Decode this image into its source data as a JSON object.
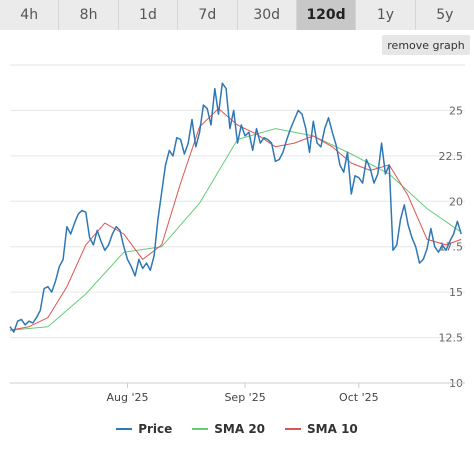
{
  "tabs": [
    {
      "label": "4h",
      "active": false
    },
    {
      "label": "8h",
      "active": false
    },
    {
      "label": "1d",
      "active": false
    },
    {
      "label": "7d",
      "active": false
    },
    {
      "label": "30d",
      "active": false
    },
    {
      "label": "120d",
      "active": true
    },
    {
      "label": "1y",
      "active": false
    },
    {
      "label": "5y",
      "active": false
    }
  ],
  "remove_graph_label": "remove graph",
  "legend": [
    {
      "label": "Price",
      "color": "#2f78b4"
    },
    {
      "label": "SMA 20",
      "color": "#66cc77"
    },
    {
      "label": "SMA 10",
      "color": "#e05252"
    }
  ],
  "chart_data": {
    "type": "line",
    "ylim": [
      10,
      27.5
    ],
    "yticks": [
      10,
      12.5,
      15,
      17.5,
      20,
      22.5,
      25
    ],
    "ytick_labels": [
      "10",
      "12.5",
      "15",
      "17.5",
      "20",
      "22.5",
      "25"
    ],
    "xlim": [
      0,
      120
    ],
    "xticks": [
      {
        "x": 31,
        "label": "Aug '25"
      },
      {
        "x": 62,
        "label": "Sep '25"
      },
      {
        "x": 92,
        "label": "Oct '25"
      }
    ],
    "grid": true,
    "legend_position": "bottom",
    "series": [
      {
        "name": "Price",
        "color": "#2f78b4",
        "x": [
          0,
          1,
          2,
          3,
          4,
          5,
          6,
          7,
          8,
          9,
          10,
          11,
          12,
          13,
          14,
          15,
          16,
          17,
          18,
          19,
          20,
          21,
          22,
          23,
          24,
          25,
          26,
          27,
          28,
          29,
          30,
          31,
          32,
          33,
          34,
          35,
          36,
          37,
          38,
          39,
          40,
          41,
          42,
          43,
          44,
          45,
          46,
          47,
          48,
          49,
          50,
          51,
          52,
          53,
          54,
          55,
          56,
          57,
          58,
          59,
          60,
          61,
          62,
          63,
          64,
          65,
          66,
          67,
          68,
          69,
          70,
          71,
          72,
          73,
          74,
          75,
          76,
          77,
          78,
          79,
          80,
          81,
          82,
          83,
          84,
          85,
          86,
          87,
          88,
          89,
          90,
          91,
          92,
          93,
          94,
          95,
          96,
          97,
          98,
          99,
          100,
          101,
          102,
          103,
          104,
          105,
          106,
          107,
          108,
          109,
          110,
          111,
          112,
          113,
          114,
          115,
          116,
          117,
          118,
          119
        ],
        "values": [
          13.1,
          12.8,
          13.4,
          13.5,
          13.2,
          13.4,
          13.3,
          13.6,
          14.0,
          15.2,
          15.3,
          15.0,
          15.6,
          16.4,
          16.8,
          18.6,
          18.2,
          18.8,
          19.3,
          19.5,
          19.4,
          18.0,
          17.6,
          18.4,
          17.8,
          17.3,
          17.6,
          18.2,
          18.6,
          18.4,
          17.5,
          16.8,
          16.4,
          15.9,
          16.8,
          16.3,
          16.6,
          16.2,
          17.0,
          19.0,
          20.5,
          22.0,
          22.8,
          22.5,
          23.5,
          23.4,
          22.6,
          23.2,
          24.5,
          23.0,
          23.8,
          25.3,
          25.1,
          24.2,
          26.2,
          24.8,
          26.5,
          26.2,
          24.0,
          25.0,
          23.2,
          24.2,
          23.6,
          23.8,
          22.8,
          24.0,
          23.2,
          23.5,
          23.4,
          23.2,
          22.2,
          22.3,
          22.7,
          23.4,
          24.0,
          24.5,
          25.0,
          24.8,
          24.0,
          22.7,
          24.4,
          23.2,
          23.0,
          24.0,
          24.6,
          23.8,
          23.1,
          22.0,
          21.6,
          22.7,
          20.4,
          21.4,
          21.3,
          21.0,
          22.3,
          21.8,
          21.0,
          21.5,
          23.2,
          21.5,
          22.0,
          17.3,
          17.6,
          19.0,
          19.8,
          18.7,
          18.0,
          17.5,
          16.6,
          16.8,
          17.4,
          18.5,
          17.5,
          17.2,
          17.6,
          17.3,
          17.8,
          18.2,
          18.9,
          18.2
        ]
      },
      {
        "name": "SMA 20",
        "color": "#66cc77",
        "x": [
          0,
          10,
          20,
          30,
          40,
          50,
          60,
          70,
          80,
          90,
          100,
          110,
          119
        ],
        "values": [
          12.9,
          13.1,
          14.9,
          17.2,
          17.5,
          19.9,
          23.4,
          24.0,
          23.6,
          22.6,
          21.5,
          19.6,
          18.3
        ]
      },
      {
        "name": "SMA 10",
        "color": "#e05252",
        "x": [
          0,
          5,
          10,
          15,
          20,
          25,
          30,
          35,
          40,
          45,
          50,
          55,
          60,
          65,
          70,
          75,
          80,
          85,
          90,
          95,
          100,
          105,
          110,
          115,
          119
        ],
        "values": [
          12.9,
          13.1,
          13.6,
          15.3,
          17.6,
          18.8,
          18.2,
          16.8,
          17.6,
          21.0,
          24.1,
          25.1,
          24.2,
          23.7,
          23.0,
          23.2,
          23.6,
          23.0,
          22.1,
          21.7,
          22.0,
          20.3,
          17.9,
          17.6,
          17.9
        ]
      }
    ]
  }
}
